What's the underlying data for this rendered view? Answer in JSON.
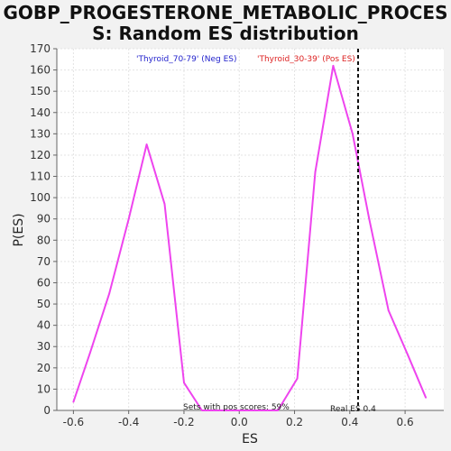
{
  "chart_data": {
    "type": "line",
    "title_lines": [
      "GOBP_PROGESTERONE_METABOLIC_PROCES",
      "S: Random ES distribution"
    ],
    "xlabel": "ES",
    "ylabel": "P(ES)",
    "xlim": [
      -0.66,
      0.74
    ],
    "ylim": [
      0,
      170
    ],
    "xticks": [
      -0.6,
      -0.4,
      -0.2,
      0.0,
      0.2,
      0.4,
      0.6
    ],
    "xtick_labels": [
      "-0.6",
      "-0.4",
      "-0.2",
      "0.0",
      "0.2",
      "0.4",
      "0.6"
    ],
    "yticks": [
      0,
      10,
      20,
      30,
      40,
      50,
      60,
      70,
      80,
      90,
      100,
      110,
      120,
      130,
      140,
      150,
      160,
      170
    ],
    "grid": true,
    "legend": [
      {
        "label": "'Thyroid_70-79' (Neg ES)",
        "color": "#2222cc"
      },
      {
        "label": "'Thyroid_30-39' (Pos ES)",
        "color": "#dd2222"
      }
    ],
    "series": [
      {
        "color": "#ee44ee",
        "points": [
          [
            -0.6,
            4
          ],
          [
            -0.54,
            27
          ],
          [
            -0.47,
            55
          ],
          [
            -0.4,
            90
          ],
          [
            -0.335,
            125
          ],
          [
            -0.27,
            97
          ],
          [
            -0.2,
            13
          ],
          [
            -0.135,
            0
          ],
          [
            -0.07,
            0
          ],
          [
            0.0,
            0
          ],
          [
            0.07,
            0
          ],
          [
            0.14,
            0
          ],
          [
            0.21,
            15
          ],
          [
            0.275,
            112
          ],
          [
            0.34,
            162
          ],
          [
            0.41,
            130
          ],
          [
            0.47,
            90
          ],
          [
            0.54,
            47
          ],
          [
            0.61,
            26
          ],
          [
            0.675,
            6
          ]
        ]
      }
    ],
    "real_es": {
      "x": 0.43,
      "label": "Real ES 0.4"
    },
    "annotation": "Sets with pos scores: 59%"
  }
}
